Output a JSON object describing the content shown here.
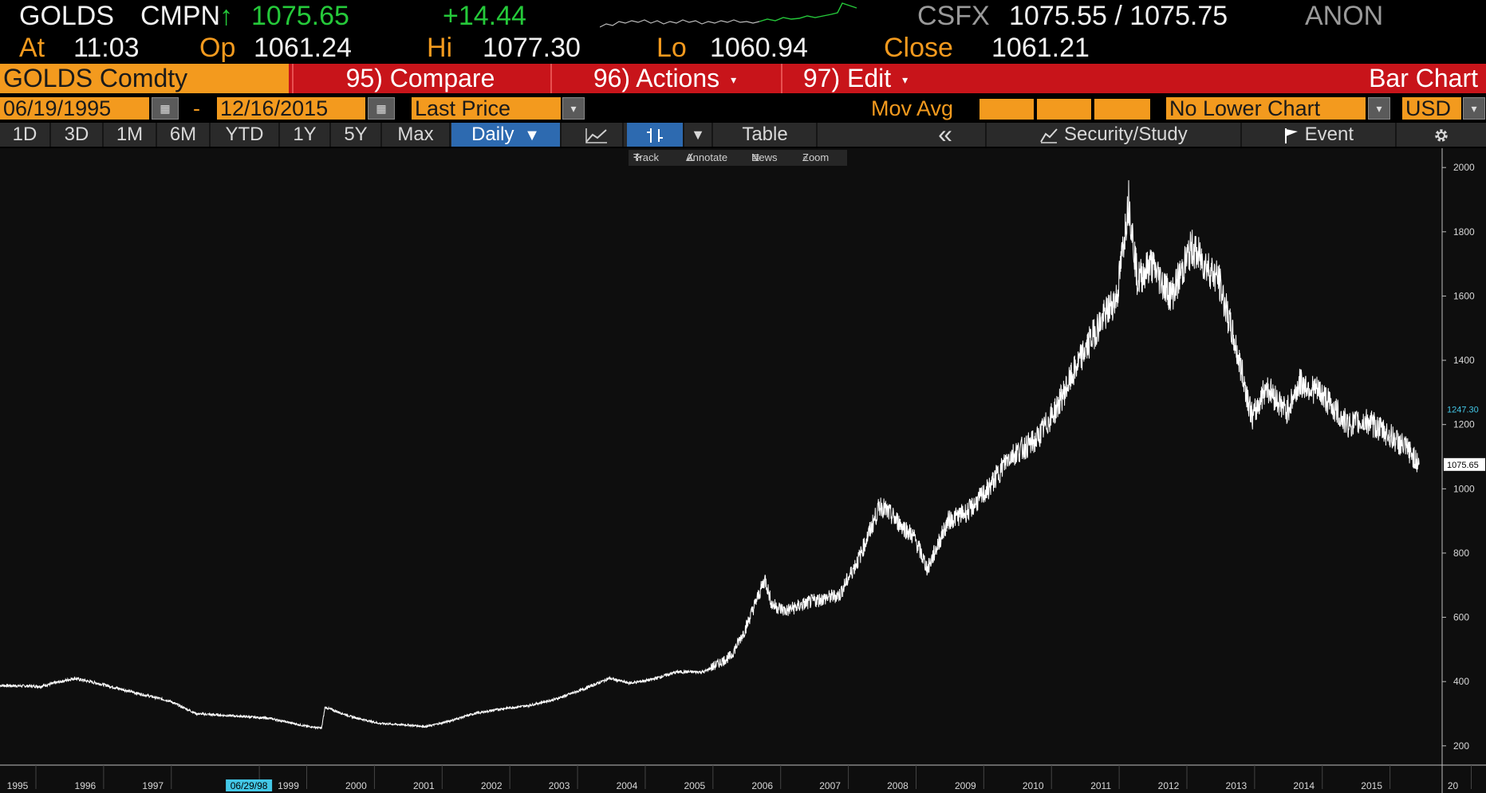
{
  "quote": {
    "ticker": "GOLDS",
    "source": "CMPN",
    "arrow": "↑",
    "last": "1075.65",
    "change": "+14.44",
    "exchange": "CSFX",
    "bid_ask": "1075.55 / 1075.75",
    "dealer": "ANON",
    "at_label": "At",
    "time": "11:03",
    "open_label": "Op",
    "open": "1061.24",
    "high_label": "Hi",
    "high": "1077.30",
    "low_label": "Lo",
    "low": "1060.94",
    "close_label": "Close",
    "close": "1061.21",
    "spark_color": "#25c93a"
  },
  "header": {
    "security": "GOLDS Comdty",
    "compare": "95) Compare",
    "actions": "96) Actions",
    "edit": "97) Edit",
    "chart_type": "Bar Chart"
  },
  "range": {
    "start_date": "06/19/1995",
    "dash": "-",
    "end_date": "12/16/2015",
    "field": "Last Price",
    "mov_avg_label": "Mov Avg",
    "lower_chart": "No Lower Chart",
    "currency": "USD"
  },
  "toolbar": {
    "periods": [
      "1D",
      "3D",
      "1M",
      "6M",
      "YTD",
      "1Y",
      "5Y",
      "Max"
    ],
    "frequency": "Daily",
    "table_label": "Table",
    "collapse_icon": "«",
    "security_study": "Security/Study",
    "event": "Event",
    "settings_icon": "gear-icon"
  },
  "tools": {
    "track": "Track",
    "annotate": "Annotate",
    "news": "News",
    "zoom": "Zoom"
  },
  "chart_data": {
    "type": "line",
    "series": [
      {
        "name": "",
        "color": "#ffffff",
        "x": [
          1995.0,
          1995.6,
          1996.1,
          1996.5,
          1997.0,
          1997.5,
          1997.9,
          1998.3,
          1998.7,
          1999.0,
          1999.5,
          1999.75,
          1999.8,
          2000.2,
          2000.6,
          2001.0,
          2001.3,
          2001.6,
          2002.0,
          2002.4,
          2002.8,
          2003.2,
          2003.6,
          2004.0,
          2004.3,
          2004.6,
          2005.0,
          2005.4,
          2005.8,
          2006.0,
          2006.3,
          2006.4,
          2006.6,
          2007.0,
          2007.4,
          2007.7,
          2008.0,
          2008.2,
          2008.5,
          2008.7,
          2008.8,
          2009.0,
          2009.3,
          2009.6,
          2009.9,
          2010.3,
          2010.6,
          2010.9,
          2011.2,
          2011.5,
          2011.67,
          2011.8,
          2012.0,
          2012.3,
          2012.6,
          2012.8,
          2013.0,
          2013.3,
          2013.5,
          2013.7,
          2014.0,
          2014.2,
          2014.5,
          2014.9,
          2015.2,
          2015.5,
          2015.8,
          2015.96
        ],
        "y": [
          388,
          385,
          410,
          392,
          365,
          340,
          300,
          295,
          290,
          285,
          262,
          255,
          320,
          290,
          270,
          265,
          260,
          275,
          300,
          315,
          325,
          345,
          375,
          410,
          395,
          405,
          430,
          430,
          480,
          560,
          720,
          640,
          620,
          650,
          670,
          790,
          950,
          910,
          850,
          750,
          800,
          900,
          930,
          1000,
          1100,
          1150,
          1250,
          1380,
          1500,
          1600,
          1900,
          1650,
          1700,
          1600,
          1750,
          1700,
          1650,
          1400,
          1220,
          1320,
          1240,
          1330,
          1300,
          1200,
          1210,
          1170,
          1120,
          1075.65
        ]
      }
    ],
    "x_ticks": [
      "1995",
      "1996",
      "1997",
      "06/29/98",
      "1999",
      "2000",
      "2001",
      "2002",
      "2003",
      "2004",
      "2005",
      "2006",
      "2007",
      "2008",
      "2009",
      "2010",
      "2011",
      "2012",
      "2013",
      "2014",
      "2015",
      "20"
    ],
    "y_ticks": [
      200,
      400,
      600,
      800,
      1000,
      1200,
      1400,
      1600,
      1800,
      2000
    ],
    "ylim": [
      140,
      2060
    ],
    "xlim": [
      1995.0,
      2016.3
    ],
    "labels": [
      "1247.30",
      "1075.65"
    ],
    "label_colors": [
      "#43c7e6",
      "#ffffff"
    ],
    "grid": false
  }
}
